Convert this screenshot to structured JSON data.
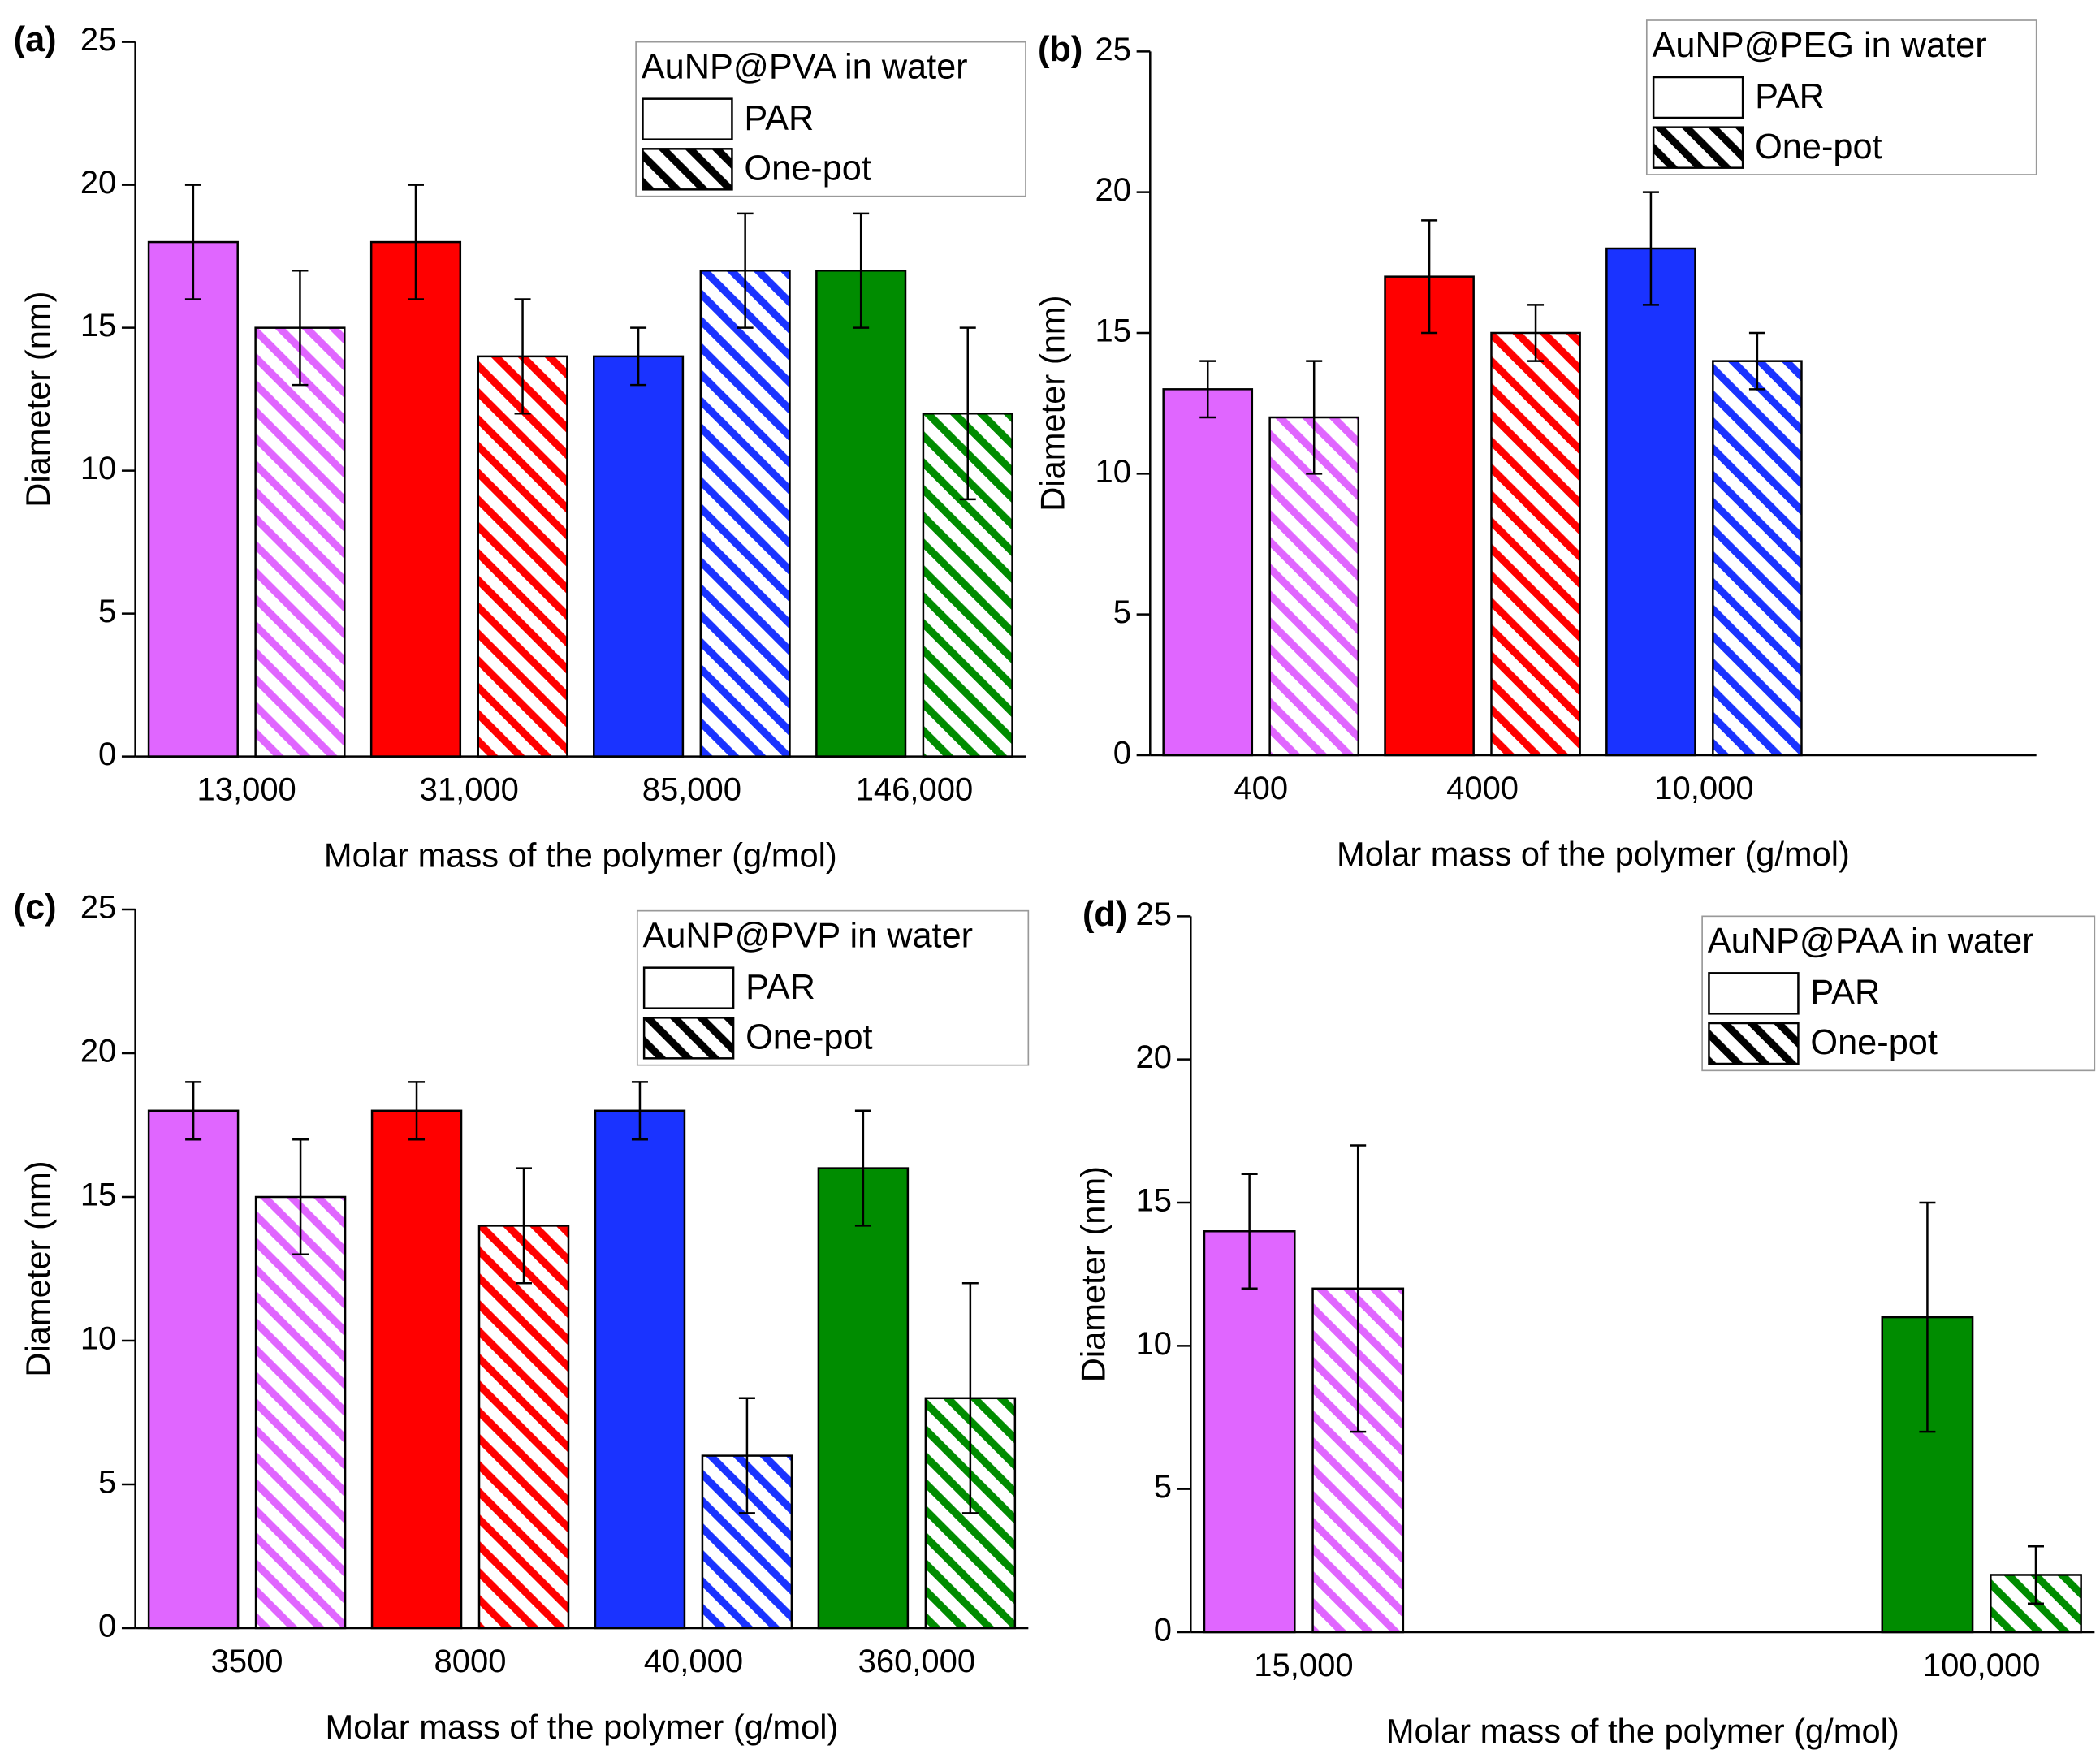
{
  "chart_data": [
    {
      "type": "bar",
      "panel_label": "(a)",
      "legend_title": "AuNP@PVA in water",
      "x_label": "Molar mass of the polymer (g/mol)",
      "y_label": "Diameter (nm)",
      "categories": [
        "13,000",
        "31,000",
        "85,000",
        "146,000"
      ],
      "category_colors": [
        "#e066ff",
        "#ff0000",
        "#1a33ff",
        "#008c00"
      ],
      "series": [
        {
          "name": "PAR",
          "pattern": "solid",
          "values": [
            18,
            18,
            14,
            17
          ],
          "errors": [
            2,
            2,
            1,
            2
          ]
        },
        {
          "name": "One-pot",
          "pattern": "hatch",
          "values": [
            15,
            14,
            17,
            12
          ],
          "errors": [
            2,
            2,
            2,
            3
          ]
        }
      ],
      "ylim": [
        0,
        25
      ],
      "yticks": [
        0,
        5,
        10,
        15,
        20,
        25
      ]
    },
    {
      "type": "bar",
      "panel_label": "(b)",
      "legend_title": "AuNP@PEG in water",
      "x_label": "Molar mass of the polymer (g/mol)",
      "y_label": "Diameter (nm)",
      "categories": [
        "400",
        "4000",
        "10,000",
        null
      ],
      "category_colors": [
        "#e066ff",
        "#ff0000",
        "#1a33ff",
        null
      ],
      "series": [
        {
          "name": "PAR",
          "pattern": "solid",
          "values": [
            13,
            17,
            18,
            null
          ],
          "errors": [
            1,
            2,
            2,
            null
          ]
        },
        {
          "name": "One-pot",
          "pattern": "hatch",
          "values": [
            12,
            15,
            14,
            null
          ],
          "errors": [
            2,
            1,
            1,
            null
          ]
        }
      ],
      "ylim": [
        0,
        25
      ],
      "yticks": [
        0,
        5,
        10,
        15,
        20,
        25
      ]
    },
    {
      "type": "bar",
      "panel_label": "(c)",
      "legend_title": "AuNP@PVP in water",
      "x_label": "Molar mass of the polymer (g/mol)",
      "y_label": "Diameter (nm)",
      "categories": [
        "3500",
        "8000",
        "40,000",
        "360,000"
      ],
      "category_colors": [
        "#e066ff",
        "#ff0000",
        "#1a33ff",
        "#008c00"
      ],
      "series": [
        {
          "name": "PAR",
          "pattern": "solid",
          "values": [
            18,
            18,
            18,
            16
          ],
          "errors": [
            1,
            1,
            1,
            2
          ]
        },
        {
          "name": "One-pot",
          "pattern": "hatch",
          "values": [
            15,
            14,
            6,
            8
          ],
          "errors": [
            2,
            2,
            2,
            4
          ]
        }
      ],
      "ylim": [
        0,
        25
      ],
      "yticks": [
        0,
        5,
        10,
        15,
        20,
        25
      ]
    },
    {
      "type": "bar",
      "panel_label": "(d)",
      "legend_title": "AuNP@PAA in water",
      "x_label": "Molar mass of the polymer (g/mol)",
      "y_label": "Diameter (nm)",
      "categories": [
        "15,000",
        null,
        null,
        "100,000"
      ],
      "category_colors": [
        "#e066ff",
        null,
        null,
        "#008c00"
      ],
      "series": [
        {
          "name": "PAR",
          "pattern": "solid",
          "values": [
            14,
            null,
            null,
            11
          ],
          "errors": [
            2,
            null,
            null,
            4
          ]
        },
        {
          "name": "One-pot",
          "pattern": "hatch",
          "values": [
            12,
            null,
            null,
            2
          ],
          "errors": [
            5,
            null,
            null,
            1
          ]
        }
      ],
      "ylim": [
        0,
        25
      ],
      "yticks": [
        0,
        5,
        10,
        15,
        20,
        25
      ]
    }
  ]
}
